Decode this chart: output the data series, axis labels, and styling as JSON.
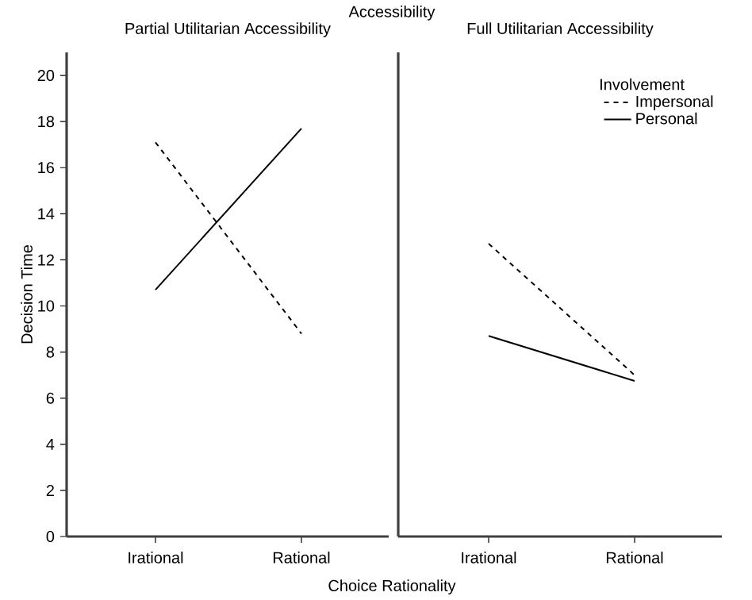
{
  "chart_data": [
    {
      "type": "line",
      "title": "Partial Utilitarian Accessibility",
      "annotations": [
        "Accessibility"
      ],
      "xlabel": "Choice Rationality",
      "ylabel": "Decision Time",
      "categories": [
        "Irational",
        "Rational"
      ],
      "ylim": [
        0,
        21
      ],
      "yticks": [
        0,
        2,
        4,
        6,
        8,
        10,
        12,
        14,
        16,
        18,
        20
      ],
      "series": [
        {
          "color": "#000000",
          "line_style": "dashed",
          "values": [
            17.1,
            8.8
          ]
        },
        {
          "color": "#000000",
          "line_style": "solid",
          "values": [
            10.7,
            17.7
          ]
        }
      ]
    },
    {
      "type": "line",
      "title": "Full Utilitarian Accessibility",
      "legend_title": "Involvement",
      "legend": "top right",
      "tick_labels": "x",
      "categories": [
        "Irational",
        "Rational"
      ],
      "ylim": [
        0,
        21
      ],
      "yticks": [
        0,
        2,
        4,
        6,
        8,
        10,
        12,
        14,
        16,
        18,
        20
      ],
      "series": [
        {
          "name": "Impersonal",
          "color": "#000000",
          "line_style": "dashed",
          "values": [
            12.7,
            7.0
          ]
        },
        {
          "name": "Personal",
          "color": "#000000",
          "line_style": "solid",
          "values": [
            8.7,
            6.75
          ]
        }
      ]
    }
  ]
}
